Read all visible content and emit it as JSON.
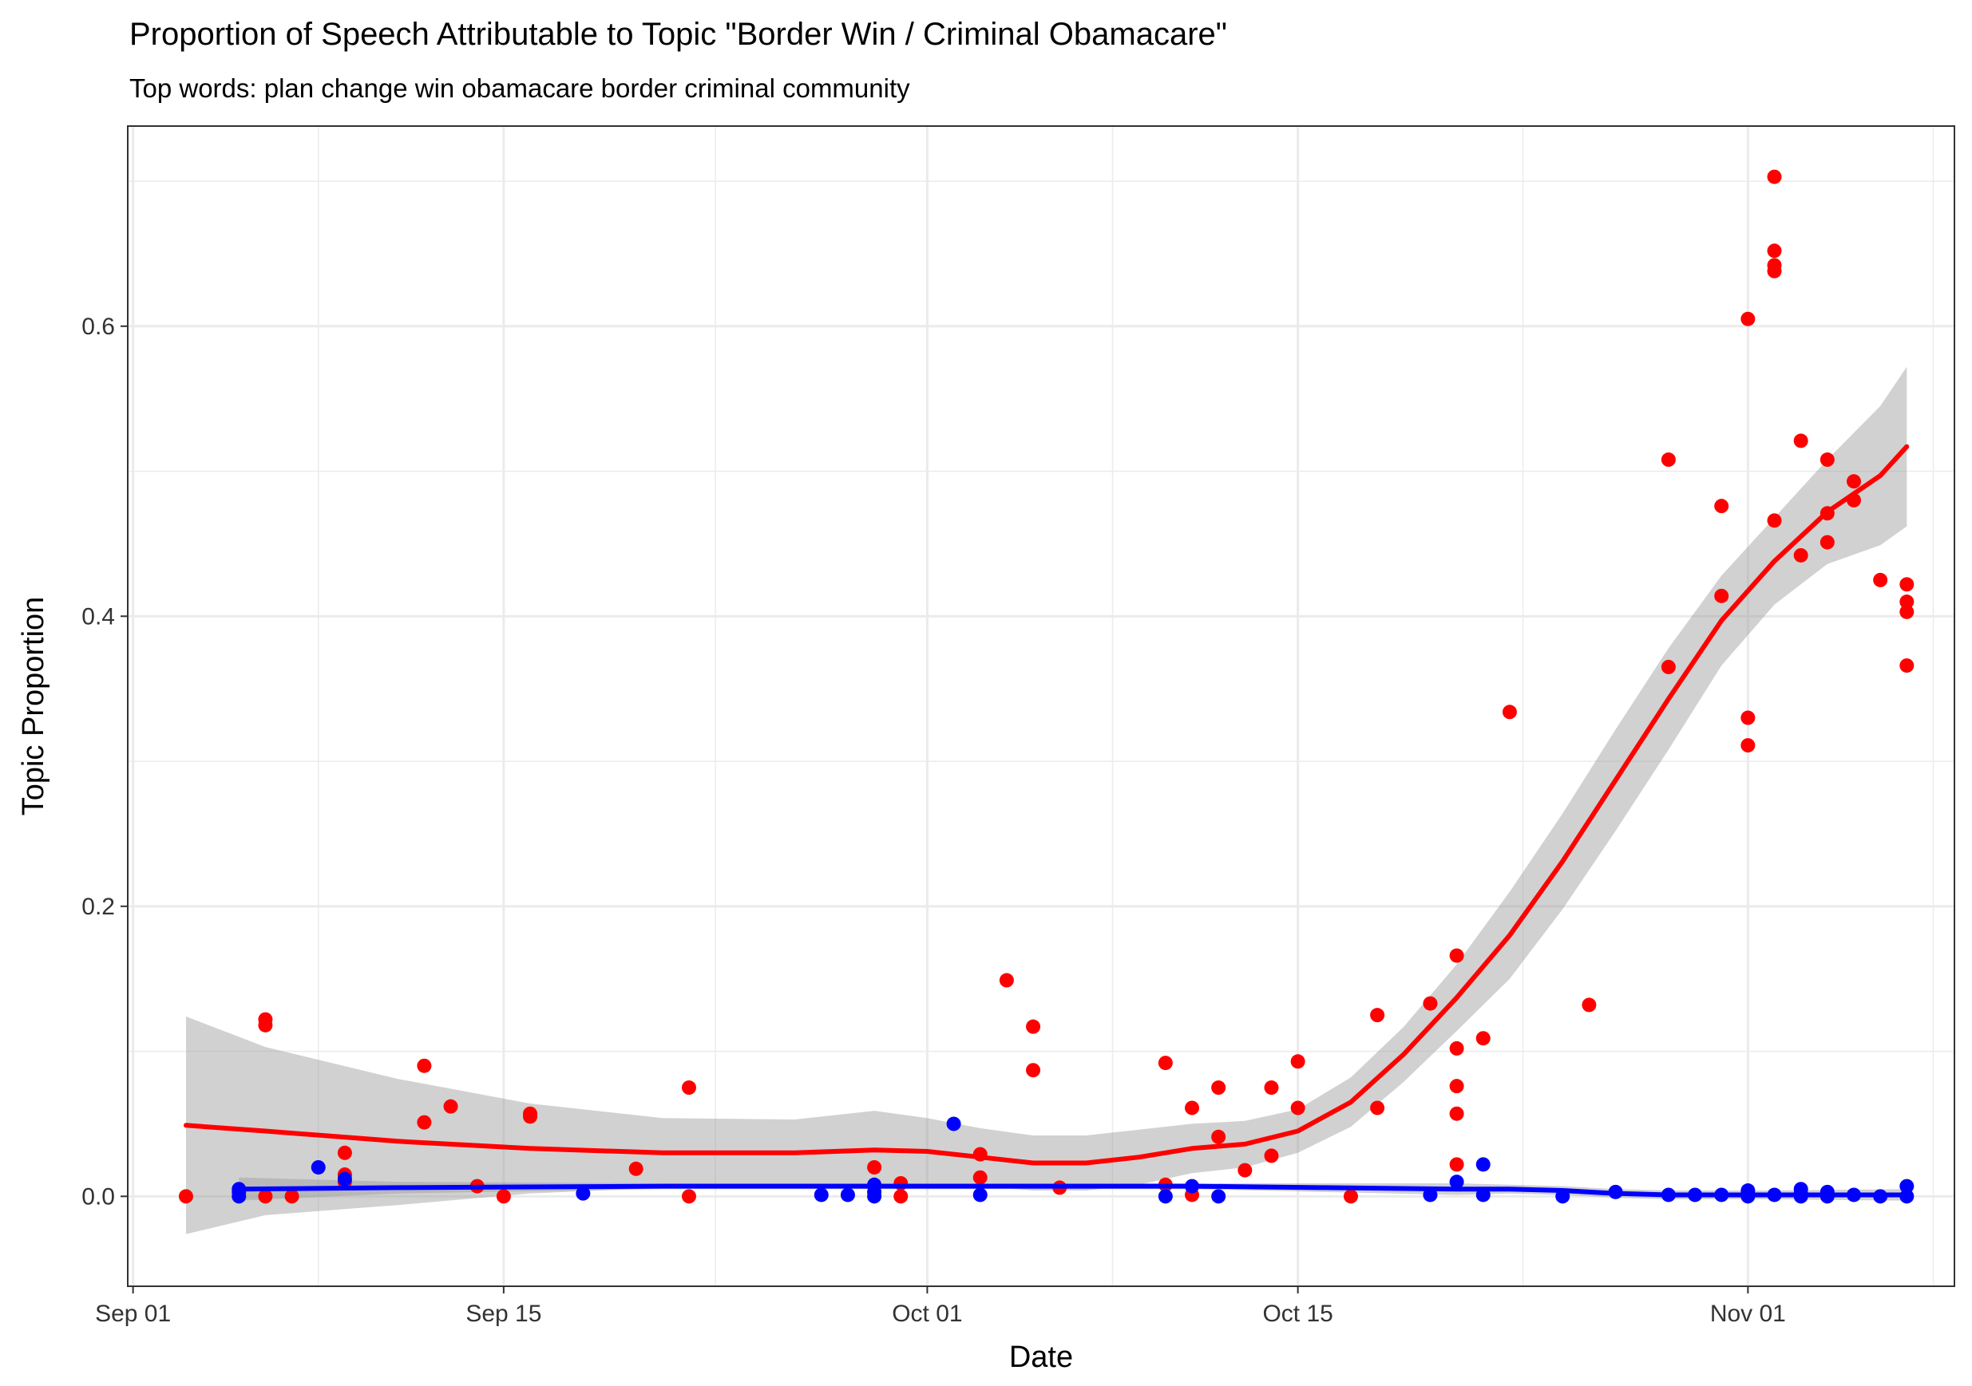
{
  "chart_data": {
    "type": "scatter",
    "title": "Proportion of Speech Attributable to Topic \"Border Win / Criminal Obamacare\"",
    "subtitle": "Top words: plan change win obamacare border criminal community",
    "xlabel": "Date",
    "ylabel": "Topic Proportion",
    "x_unit": "days since Sep 01",
    "xlim": [
      -0.2,
      68.8
    ],
    "ylim": [
      -0.062,
      0.738
    ],
    "x_ticks": [
      {
        "value": 0,
        "label": "Sep 01"
      },
      {
        "value": 14,
        "label": "Sep 15"
      },
      {
        "value": 30,
        "label": "Oct 01"
      },
      {
        "value": 44,
        "label": "Oct 15"
      },
      {
        "value": 61,
        "label": "Nov 01"
      }
    ],
    "y_ticks": [
      {
        "value": 0.0,
        "label": "0.0"
      },
      {
        "value": 0.2,
        "label": "0.2"
      },
      {
        "value": 0.4,
        "label": "0.4"
      },
      {
        "value": 0.6,
        "label": "0.6"
      }
    ],
    "x_minor_ticks": [
      7,
      22,
      37,
      52.5,
      68
    ],
    "y_minor_ticks": [
      0.1,
      0.3,
      0.5,
      0.7
    ],
    "grid": true,
    "colors": {
      "red": "#ff0000",
      "blue": "#0000ff",
      "ribbon": "#999999",
      "grid": "#ebebeb",
      "border": "#333333"
    },
    "series": [
      {
        "name": "Red",
        "color": "#ff0000",
        "points": [
          [
            2,
            0.0
          ],
          [
            5,
            0.122
          ],
          [
            5,
            0.118
          ],
          [
            5,
            0.0
          ],
          [
            6,
            0.0
          ],
          [
            8,
            0.03
          ],
          [
            8,
            0.015
          ],
          [
            8,
            0.01
          ],
          [
            11,
            0.09
          ],
          [
            11,
            0.051
          ],
          [
            12,
            0.062
          ],
          [
            13,
            0.007
          ],
          [
            14,
            0.0
          ],
          [
            15,
            0.057
          ],
          [
            15,
            0.055
          ],
          [
            19,
            0.019
          ],
          [
            21,
            0.075
          ],
          [
            21,
            0.0
          ],
          [
            28,
            0.02
          ],
          [
            29,
            0.009
          ],
          [
            29,
            0.0
          ],
          [
            32,
            0.029
          ],
          [
            32,
            0.013
          ],
          [
            33,
            0.149
          ],
          [
            34,
            0.117
          ],
          [
            34,
            0.087
          ],
          [
            35,
            0.006
          ],
          [
            39,
            0.092
          ],
          [
            39,
            0.008
          ],
          [
            40,
            0.061
          ],
          [
            40,
            0.001
          ],
          [
            41,
            0.075
          ],
          [
            41,
            0.041
          ],
          [
            42,
            0.018
          ],
          [
            43,
            0.075
          ],
          [
            43,
            0.028
          ],
          [
            44,
            0.093
          ],
          [
            44,
            0.061
          ],
          [
            46,
            0.0
          ],
          [
            47,
            0.125
          ],
          [
            47,
            0.061
          ],
          [
            49,
            0.133
          ],
          [
            50,
            0.166
          ],
          [
            50,
            0.102
          ],
          [
            50,
            0.076
          ],
          [
            50,
            0.057
          ],
          [
            50,
            0.022
          ],
          [
            51,
            0.109
          ],
          [
            52,
            0.334
          ],
          [
            55,
            0.132
          ],
          [
            58,
            0.508
          ],
          [
            58,
            0.365
          ],
          [
            60,
            0.476
          ],
          [
            60,
            0.414
          ],
          [
            61,
            0.605
          ],
          [
            61,
            0.33
          ],
          [
            61,
            0.311
          ],
          [
            62,
            0.703
          ],
          [
            62,
            0.652
          ],
          [
            62,
            0.642
          ],
          [
            62,
            0.638
          ],
          [
            62,
            0.466
          ],
          [
            63,
            0.521
          ],
          [
            63,
            0.442
          ],
          [
            64,
            0.508
          ],
          [
            64,
            0.471
          ],
          [
            64,
            0.451
          ],
          [
            65,
            0.493
          ],
          [
            65,
            0.48
          ],
          [
            66,
            0.425
          ],
          [
            67,
            0.422
          ],
          [
            67,
            0.41
          ],
          [
            67,
            0.403
          ],
          [
            67,
            0.366
          ]
        ],
        "smooth": [
          [
            2,
            0.049
          ],
          [
            5,
            0.045
          ],
          [
            10,
            0.038
          ],
          [
            15,
            0.033
          ],
          [
            20,
            0.03
          ],
          [
            25,
            0.03
          ],
          [
            28,
            0.032
          ],
          [
            30,
            0.031
          ],
          [
            32,
            0.027
          ],
          [
            34,
            0.023
          ],
          [
            36,
            0.023
          ],
          [
            38,
            0.027
          ],
          [
            40,
            0.033
          ],
          [
            42,
            0.036
          ],
          [
            44,
            0.045
          ],
          [
            46,
            0.065
          ],
          [
            48,
            0.098
          ],
          [
            50,
            0.137
          ],
          [
            52,
            0.18
          ],
          [
            54,
            0.231
          ],
          [
            56,
            0.287
          ],
          [
            58,
            0.343
          ],
          [
            60,
            0.397
          ],
          [
            62,
            0.438
          ],
          [
            64,
            0.472
          ],
          [
            66,
            0.497
          ],
          [
            67,
            0.517
          ]
        ],
        "ribbon_upper": [
          [
            2,
            0.124
          ],
          [
            5,
            0.103
          ],
          [
            10,
            0.081
          ],
          [
            15,
            0.064
          ],
          [
            20,
            0.054
          ],
          [
            25,
            0.053
          ],
          [
            28,
            0.059
          ],
          [
            30,
            0.054
          ],
          [
            32,
            0.047
          ],
          [
            34,
            0.042
          ],
          [
            36,
            0.042
          ],
          [
            38,
            0.046
          ],
          [
            40,
            0.05
          ],
          [
            42,
            0.052
          ],
          [
            44,
            0.06
          ],
          [
            46,
            0.082
          ],
          [
            48,
            0.117
          ],
          [
            50,
            0.16
          ],
          [
            52,
            0.21
          ],
          [
            54,
            0.264
          ],
          [
            56,
            0.322
          ],
          [
            58,
            0.378
          ],
          [
            60,
            0.428
          ],
          [
            62,
            0.468
          ],
          [
            64,
            0.508
          ],
          [
            66,
            0.545
          ],
          [
            67,
            0.572
          ]
        ],
        "ribbon_lower": [
          [
            2,
            -0.026
          ],
          [
            5,
            -0.013
          ],
          [
            10,
            -0.006
          ],
          [
            15,
            0.002
          ],
          [
            20,
            0.006
          ],
          [
            25,
            0.007
          ],
          [
            28,
            0.005
          ],
          [
            30,
            0.008
          ],
          [
            32,
            0.007
          ],
          [
            34,
            0.004
          ],
          [
            36,
            0.004
          ],
          [
            38,
            0.008
          ],
          [
            40,
            0.016
          ],
          [
            42,
            0.02
          ],
          [
            44,
            0.03
          ],
          [
            46,
            0.048
          ],
          [
            48,
            0.079
          ],
          [
            50,
            0.114
          ],
          [
            52,
            0.15
          ],
          [
            54,
            0.198
          ],
          [
            56,
            0.252
          ],
          [
            58,
            0.308
          ],
          [
            60,
            0.366
          ],
          [
            62,
            0.408
          ],
          [
            64,
            0.436
          ],
          [
            66,
            0.449
          ],
          [
            67,
            0.462
          ]
        ]
      },
      {
        "name": "Blue",
        "color": "#0000ff",
        "points": [
          [
            4,
            0.005
          ],
          [
            4,
            0.003
          ],
          [
            4,
            0.0
          ],
          [
            7,
            0.02
          ],
          [
            8,
            0.012
          ],
          [
            17,
            0.002
          ],
          [
            26,
            0.001
          ],
          [
            27,
            0.001
          ],
          [
            28,
            0.008
          ],
          [
            28,
            0.003
          ],
          [
            28,
            0.0
          ],
          [
            31,
            0.05
          ],
          [
            32,
            0.001
          ],
          [
            39,
            0.0
          ],
          [
            40,
            0.007
          ],
          [
            41,
            0.0
          ],
          [
            49,
            0.001
          ],
          [
            50,
            0.01
          ],
          [
            51,
            0.022
          ],
          [
            51,
            0.001
          ],
          [
            54,
            0.0
          ],
          [
            56,
            0.003
          ],
          [
            58,
            0.001
          ],
          [
            59,
            0.001
          ],
          [
            60,
            0.001
          ],
          [
            61,
            0.004
          ],
          [
            61,
            0.002
          ],
          [
            61,
            0.0
          ],
          [
            62,
            0.001
          ],
          [
            63,
            0.005
          ],
          [
            63,
            0.002
          ],
          [
            63,
            0.0
          ],
          [
            64,
            0.003
          ],
          [
            64,
            0.001
          ],
          [
            64,
            0.0
          ],
          [
            65,
            0.001
          ],
          [
            66,
            0.0
          ],
          [
            67,
            0.007
          ],
          [
            67,
            0.0
          ]
        ],
        "smooth": [
          [
            4,
            0.005
          ],
          [
            10,
            0.006
          ],
          [
            20,
            0.007
          ],
          [
            30,
            0.007
          ],
          [
            40,
            0.007
          ],
          [
            45,
            0.006
          ],
          [
            50,
            0.005
          ],
          [
            52,
            0.005
          ],
          [
            54,
            0.004
          ],
          [
            56,
            0.002
          ],
          [
            58,
            0.001
          ],
          [
            62,
            0.001
          ],
          [
            67,
            0.001
          ]
        ],
        "ribbon_upper": [
          [
            4,
            0.013
          ],
          [
            10,
            0.01
          ],
          [
            20,
            0.009
          ],
          [
            30,
            0.009
          ],
          [
            40,
            0.009
          ],
          [
            45,
            0.009
          ],
          [
            50,
            0.009
          ],
          [
            52,
            0.008
          ],
          [
            54,
            0.007
          ],
          [
            56,
            0.005
          ],
          [
            58,
            0.004
          ],
          [
            62,
            0.004
          ],
          [
            67,
            0.005
          ]
        ],
        "ribbon_lower": [
          [
            4,
            -0.003
          ],
          [
            10,
            0.002
          ],
          [
            20,
            0.005
          ],
          [
            30,
            0.005
          ],
          [
            40,
            0.005
          ],
          [
            45,
            0.003
          ],
          [
            50,
            0.001
          ],
          [
            52,
            0.002
          ],
          [
            54,
            0.001
          ],
          [
            56,
            -0.001
          ],
          [
            58,
            -0.002
          ],
          [
            62,
            -0.002
          ],
          [
            67,
            -0.003
          ]
        ]
      }
    ]
  }
}
